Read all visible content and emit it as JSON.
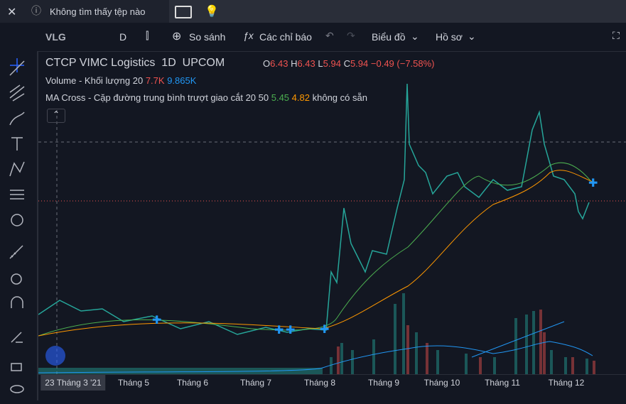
{
  "tab": {
    "title": "Không tìm thấy tệp nào"
  },
  "toolbar": {
    "symbol": "VLG",
    "interval": "D",
    "compare": "So sánh",
    "indicators": "Các chỉ báo",
    "chart": "Biểu đồ",
    "profile": "Hồ sơ"
  },
  "legend": {
    "name": "CTCP VIMC Logistics",
    "interval": "1D",
    "exchange": "UPCOM",
    "ohlc": [
      {
        "label": "O",
        "value": "6.43"
      },
      {
        "label": "H",
        "value": "6.43"
      },
      {
        "label": "L",
        "value": "5.94"
      },
      {
        "label": "C",
        "value": "5.94"
      }
    ],
    "change": "−0.49 (−7.58%)"
  },
  "volume": {
    "label": "Volume - Khối lượng 20",
    "value": "7.7K",
    "ma": "9.865K"
  },
  "ma_cross": {
    "label": "MA Cross - Cặp đường trung bình trượt giao cắt 20 50",
    "fast": "5.45",
    "slow": "4.82",
    "status": "không có sẵn"
  },
  "x_axis": [
    {
      "label": "23 Tháng 3 '21"
    },
    {
      "label": "Tháng 5"
    },
    {
      "label": "Tháng 6"
    },
    {
      "label": "Tháng 7"
    },
    {
      "label": "Tháng 8"
    },
    {
      "label": "Tháng 9"
    },
    {
      "label": "Tháng 10"
    },
    {
      "label": "Tháng 11"
    },
    {
      "label": "Tháng 12"
    }
  ]
}
